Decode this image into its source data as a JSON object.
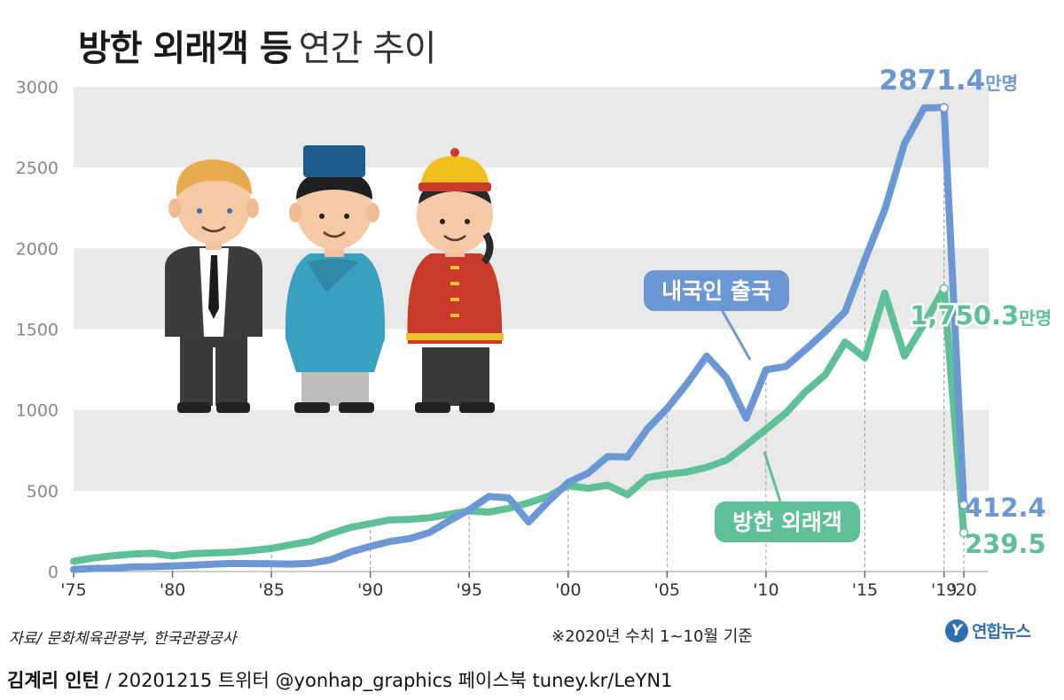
{
  "title": {
    "bold": "방한 외래객 등",
    "light": "연간 추이"
  },
  "source": "자료/ 문화체육관광부, 한국관광공사",
  "note": "※2020년 수치 1~10월 기준",
  "logo": {
    "mark": "Y",
    "text": "연합뉴스"
  },
  "footer": {
    "author": "김계리 인턴",
    "rest": " / 20201215    트위터 @yonhap_graphics  페이스북 tuney.kr/LeYN1"
  },
  "chart_data": {
    "type": "line",
    "title": "방한 외래객 등 연간 추이",
    "ylim": [
      0,
      3000
    ],
    "xlim": [
      1975,
      2020
    ],
    "yticks": [
      0,
      500,
      1000,
      1500,
      2000,
      2500,
      3000
    ],
    "ytick_labels": [
      "0",
      "500",
      "1000",
      "1500",
      "2000",
      "2500",
      "3000"
    ],
    "xticks": [
      1975,
      1980,
      1985,
      1990,
      1995,
      2000,
      2005,
      2010,
      2015,
      2019,
      2020
    ],
    "xtick_labels": [
      "'75",
      "'80",
      "'85",
      "'90",
      "'95",
      "'00",
      "'05",
      "'10",
      "'15",
      "'19",
      "'20"
    ],
    "grid": "alternating horizontal bands",
    "unit": "만명",
    "x": [
      1975,
      1976,
      1977,
      1978,
      1979,
      1980,
      1981,
      1982,
      1983,
      1984,
      1985,
      1986,
      1987,
      1988,
      1989,
      1990,
      1991,
      1992,
      1993,
      1994,
      1995,
      1996,
      1997,
      1998,
      1999,
      2000,
      2001,
      2002,
      2003,
      2004,
      2005,
      2006,
      2007,
      2008,
      2009,
      2010,
      2011,
      2012,
      2013,
      2014,
      2015,
      2016,
      2017,
      2018,
      2019,
      2020
    ],
    "series": [
      {
        "name": "내국인 출국",
        "color": "#6b98d4",
        "values": [
          13,
          19,
          21,
          29,
          30,
          34,
          39,
          45,
          50,
          49,
          48,
          46,
          51,
          73,
          121,
          156,
          186,
          204,
          242,
          315,
          382,
          465,
          455,
          307,
          434,
          551,
          608,
          712,
          709,
          882,
          1008,
          1161,
          1333,
          1200,
          949,
          1249,
          1269,
          1374,
          1485,
          1608,
          1931,
          2238,
          2650,
          2870,
          2871.4,
          412.4
        ]
      },
      {
        "name": "방한 외래객",
        "color": "#5ec096",
        "values": [
          63,
          84,
          98,
          108,
          113,
          96,
          110,
          115,
          119,
          130,
          143,
          166,
          187,
          234,
          273,
          296,
          320,
          323,
          333,
          355,
          375,
          368,
          391,
          425,
          466,
          532,
          515,
          535,
          475,
          582,
          602,
          616,
          645,
          689,
          782,
          880,
          980,
          1114,
          1218,
          1420,
          1323,
          1724,
          1334,
          1535,
          1750.3,
          239.5
        ]
      }
    ],
    "annotations": [
      {
        "label": "2871.4",
        "unit": "만명",
        "x": 2019,
        "y": 2871.4,
        "series": "내국인 출국"
      },
      {
        "label": "1,750.3",
        "unit": "만명",
        "x": 2019,
        "y": 1750.3,
        "series": "방한 외래객"
      },
      {
        "label": "412.4",
        "x": 2020,
        "y": 412.4,
        "series": "내국인 출국"
      },
      {
        "label": "239.5",
        "x": 2020,
        "y": 239.5,
        "series": "방한 외래객"
      }
    ]
  }
}
